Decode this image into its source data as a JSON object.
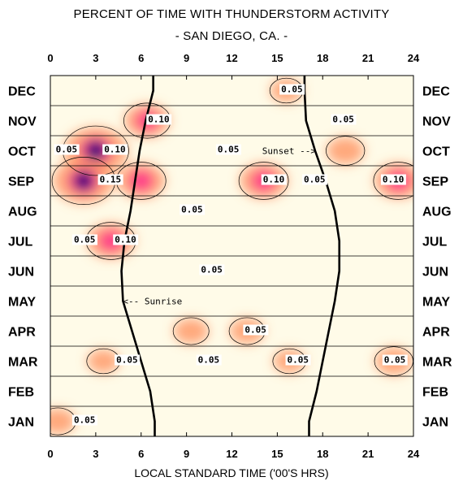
{
  "chart_data": {
    "type": "heatmap",
    "title": "PERCENT OF TIME WITH THUNDERSTORM ACTIVITY",
    "subtitle": "- SAN DIEGO, CA. -",
    "xlabel": "LOCAL STANDARD TIME ('00'S HRS)",
    "x_ticks": [
      "0",
      "3",
      "6",
      "9",
      "12",
      "15",
      "18",
      "21",
      "24"
    ],
    "xlim": [
      0,
      24
    ],
    "months": [
      "JAN",
      "FEB",
      "MAR",
      "APR",
      "MAY",
      "JUN",
      "JUL",
      "AUG",
      "SEP",
      "OCT",
      "NOV",
      "DEC"
    ],
    "contour_levels": [
      0.05,
      0.1,
      0.15
    ],
    "colors": {
      "low": "#fffbe8",
      "mid": "#ff9a6a",
      "high": "#ff2e8a",
      "peak": "#22007a"
    },
    "hotspots": [
      {
        "hour": 3.0,
        "month": "OCT",
        "value": 0.17
      },
      {
        "hour": 2.2,
        "month": "SEP",
        "value": 0.16
      },
      {
        "hour": 6.0,
        "month": "SEP",
        "value": 0.11
      },
      {
        "hour": 6.4,
        "month": "NOV",
        "value": 0.1
      },
      {
        "hour": 4.0,
        "month": "JUL",
        "value": 0.11
      },
      {
        "hour": 14.1,
        "month": "SEP",
        "value": 0.11
      },
      {
        "hour": 23.0,
        "month": "SEP",
        "value": 0.11
      },
      {
        "hour": 19.5,
        "month": "OCT",
        "value": 0.07
      },
      {
        "hour": 9.3,
        "month": "APR",
        "value": 0.06
      },
      {
        "hour": 13.0,
        "month": "APR",
        "value": 0.06
      },
      {
        "hour": 22.7,
        "month": "MAR",
        "value": 0.07
      },
      {
        "hour": 15.8,
        "month": "MAR",
        "value": 0.05
      },
      {
        "hour": 3.5,
        "month": "MAR",
        "value": 0.05
      },
      {
        "hour": 0.5,
        "month": "JAN",
        "value": 0.06
      },
      {
        "hour": 15.6,
        "month": "DEC",
        "value": 0.05
      }
    ],
    "contour_labels": [
      {
        "text": "0.10",
        "hour": 6.4,
        "month": "NOV"
      },
      {
        "text": "0.05",
        "hour": 18.6,
        "month": "NOV"
      },
      {
        "text": "0.05",
        "hour": 15.2,
        "month": "DEC"
      },
      {
        "text": "0.10",
        "hour": 3.5,
        "month": "OCT"
      },
      {
        "text": "0.05",
        "hour": 0.3,
        "month": "OCT"
      },
      {
        "text": "0.05",
        "hour": 11.0,
        "month": "OCT"
      },
      {
        "text": "0.15",
        "hour": 3.2,
        "month": "SEP"
      },
      {
        "text": "0.10",
        "hour": 14.0,
        "month": "SEP"
      },
      {
        "text": "0.10",
        "hour": 21.9,
        "month": "SEP"
      },
      {
        "text": "0.05",
        "hour": 16.7,
        "month": "SEP"
      },
      {
        "text": "0.05",
        "hour": 8.6,
        "month": "AUG"
      },
      {
        "text": "0.10",
        "hour": 4.2,
        "month": "JUL"
      },
      {
        "text": "0.05",
        "hour": 1.5,
        "month": "JUL"
      },
      {
        "text": "0.05",
        "hour": 9.9,
        "month": "JUN"
      },
      {
        "text": "0.05",
        "hour": 12.8,
        "month": "APR"
      },
      {
        "text": "0.05",
        "hour": 4.3,
        "month": "MAR"
      },
      {
        "text": "0.05",
        "hour": 9.7,
        "month": "MAR"
      },
      {
        "text": "0.05",
        "hour": 15.6,
        "month": "MAR"
      },
      {
        "text": "0.05",
        "hour": 22.0,
        "month": "MAR"
      },
      {
        "text": "0.05",
        "hour": 1.5,
        "month": "JAN"
      }
    ],
    "annotations": [
      {
        "text": "<-- Sunrise",
        "hour": 4.8,
        "month": "MAY"
      },
      {
        "text": "Sunset -->",
        "hour": 14.0,
        "month": "OCT"
      }
    ],
    "sunrise_hour_by_month": [
      6.9,
      6.6,
      6.0,
      5.4,
      4.8,
      4.7,
      4.9,
      5.3,
      5.6,
      5.9,
      6.3,
      6.8
    ],
    "sunset_hour_by_month": [
      17.1,
      17.6,
      18.0,
      18.4,
      18.8,
      19.1,
      19.1,
      18.8,
      18.2,
      17.5,
      16.9,
      16.8
    ]
  }
}
